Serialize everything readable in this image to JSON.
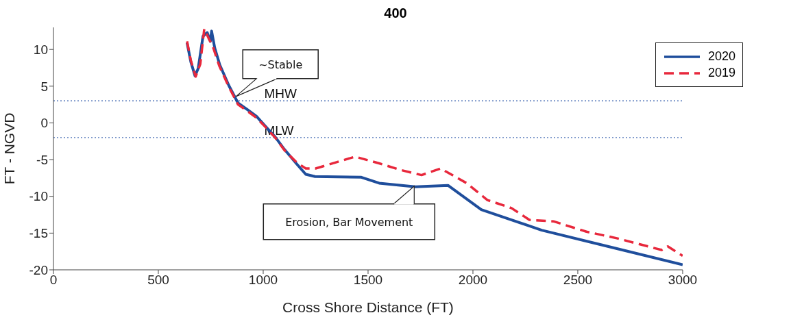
{
  "chart_data": {
    "type": "line",
    "title": "400",
    "xlabel": "Cross Shore Distance (FT)",
    "ylabel": "FT - NGVD",
    "xlim": [
      0,
      3000
    ],
    "xticks": [
      0,
      500,
      1000,
      1500,
      2000,
      2500,
      3000
    ],
    "ylim": [
      -20,
      13
    ],
    "yticks": [
      -20,
      -15,
      -10,
      -5,
      0,
      5,
      10
    ],
    "legend": "top right",
    "marker": "none",
    "series": [
      {
        "name": "2020",
        "color": "#1f4e9c",
        "line_style": "solid",
        "x": [
          637,
          655,
          675,
          690,
          713,
          733,
          748,
          754,
          769,
          793,
          836,
          880,
          925,
          968,
          1012,
          1057,
          1101,
          1160,
          1203,
          1247,
          1468,
          1553,
          1726,
          1881,
          2040,
          2328,
          2613,
          3000
        ],
        "values": [
          10.9,
          8.3,
          6.4,
          7.4,
          11.8,
          12.3,
          11.1,
          12.5,
          10.2,
          7.9,
          5.1,
          2.7,
          1.8,
          0.9,
          -0.5,
          -1.9,
          -3.6,
          -5.6,
          -7.0,
          -7.3,
          -7.4,
          -8.2,
          -8.7,
          -8.5,
          -11.8,
          -14.6,
          -16.6,
          -19.3
        ]
      },
      {
        "name": "2019",
        "color": "#e8283c",
        "line_style": "dashed",
        "x": [
          637,
          655,
          678,
          700,
          719,
          740,
          760,
          790,
          836,
          880,
          925,
          968,
          1012,
          1057,
          1101,
          1160,
          1203,
          1250,
          1438,
          1553,
          1654,
          1755,
          1846,
          1970,
          2069,
          2184,
          2269,
          2384,
          2541,
          2686,
          2900,
          2929,
          3000
        ],
        "values": [
          11.1,
          8.5,
          6.3,
          8.0,
          12.8,
          11.5,
          10.4,
          7.8,
          4.9,
          2.5,
          1.6,
          0.7,
          -0.6,
          -2.0,
          -3.7,
          -5.4,
          -6.2,
          -6.2,
          -4.6,
          -5.5,
          -6.4,
          -7.1,
          -6.2,
          -8.2,
          -10.5,
          -11.6,
          -13.2,
          -13.4,
          -14.8,
          -15.7,
          -17.3,
          -16.8,
          -18.1
        ]
      }
    ],
    "ref_lines": [
      {
        "axis": "y",
        "value": 3,
        "label": "MHW",
        "color": "#4a6fb5",
        "line_style": "dotted"
      },
      {
        "axis": "y",
        "value": -2,
        "label": "MLW",
        "color": "#4a6fb5",
        "line_style": "dotted"
      }
    ],
    "annotations": [
      {
        "text": "~Stable",
        "x": 870,
        "y": 3.6
      },
      {
        "text": "Erosion, Bar Movement",
        "x": 1720,
        "y": -8.6
      }
    ]
  }
}
